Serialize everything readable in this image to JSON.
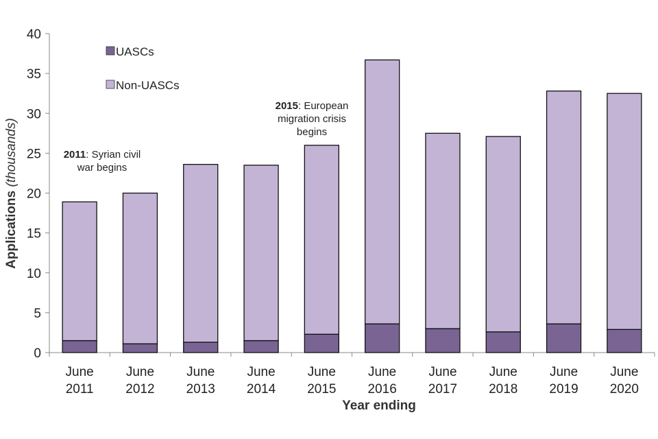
{
  "chart_data": {
    "type": "bar",
    "stacked": true,
    "title": "",
    "xlabel": "Year ending",
    "ylabel": "Applications",
    "ylabel_suffix": "(thousands)",
    "ylim": [
      0,
      40
    ],
    "yticks": [
      "0",
      "5",
      "10",
      "15",
      "20",
      "25",
      "30",
      "35",
      "40"
    ],
    "categories": [
      [
        "June",
        "2011"
      ],
      [
        "June",
        "2012"
      ],
      [
        "June",
        "2013"
      ],
      [
        "June",
        "2014"
      ],
      [
        "June",
        "2015"
      ],
      [
        "June",
        "2016"
      ],
      [
        "June",
        "2017"
      ],
      [
        "June",
        "2018"
      ],
      [
        "June",
        "2019"
      ],
      [
        "June",
        "2020"
      ]
    ],
    "series": [
      {
        "name": "UASCs",
        "color": "#7a6494",
        "values": [
          1.5,
          1.1,
          1.3,
          1.5,
          2.3,
          3.6,
          3.0,
          2.6,
          3.6,
          2.9
        ]
      },
      {
        "name": "Non-UASCs",
        "color": "#c3b4d5",
        "values": [
          17.4,
          18.9,
          22.3,
          22.0,
          23.7,
          33.1,
          24.5,
          24.5,
          29.2,
          29.6
        ]
      }
    ],
    "legend_position": "top-left",
    "grid": false,
    "annotations": [
      {
        "category_index": 0,
        "bold": "2011",
        "lines": [
          ": Syrian civil",
          "war begins"
        ]
      },
      {
        "category_index": 4,
        "bold": "2015",
        "lines": [
          ": European",
          "migration crisis",
          "begins"
        ]
      }
    ]
  }
}
